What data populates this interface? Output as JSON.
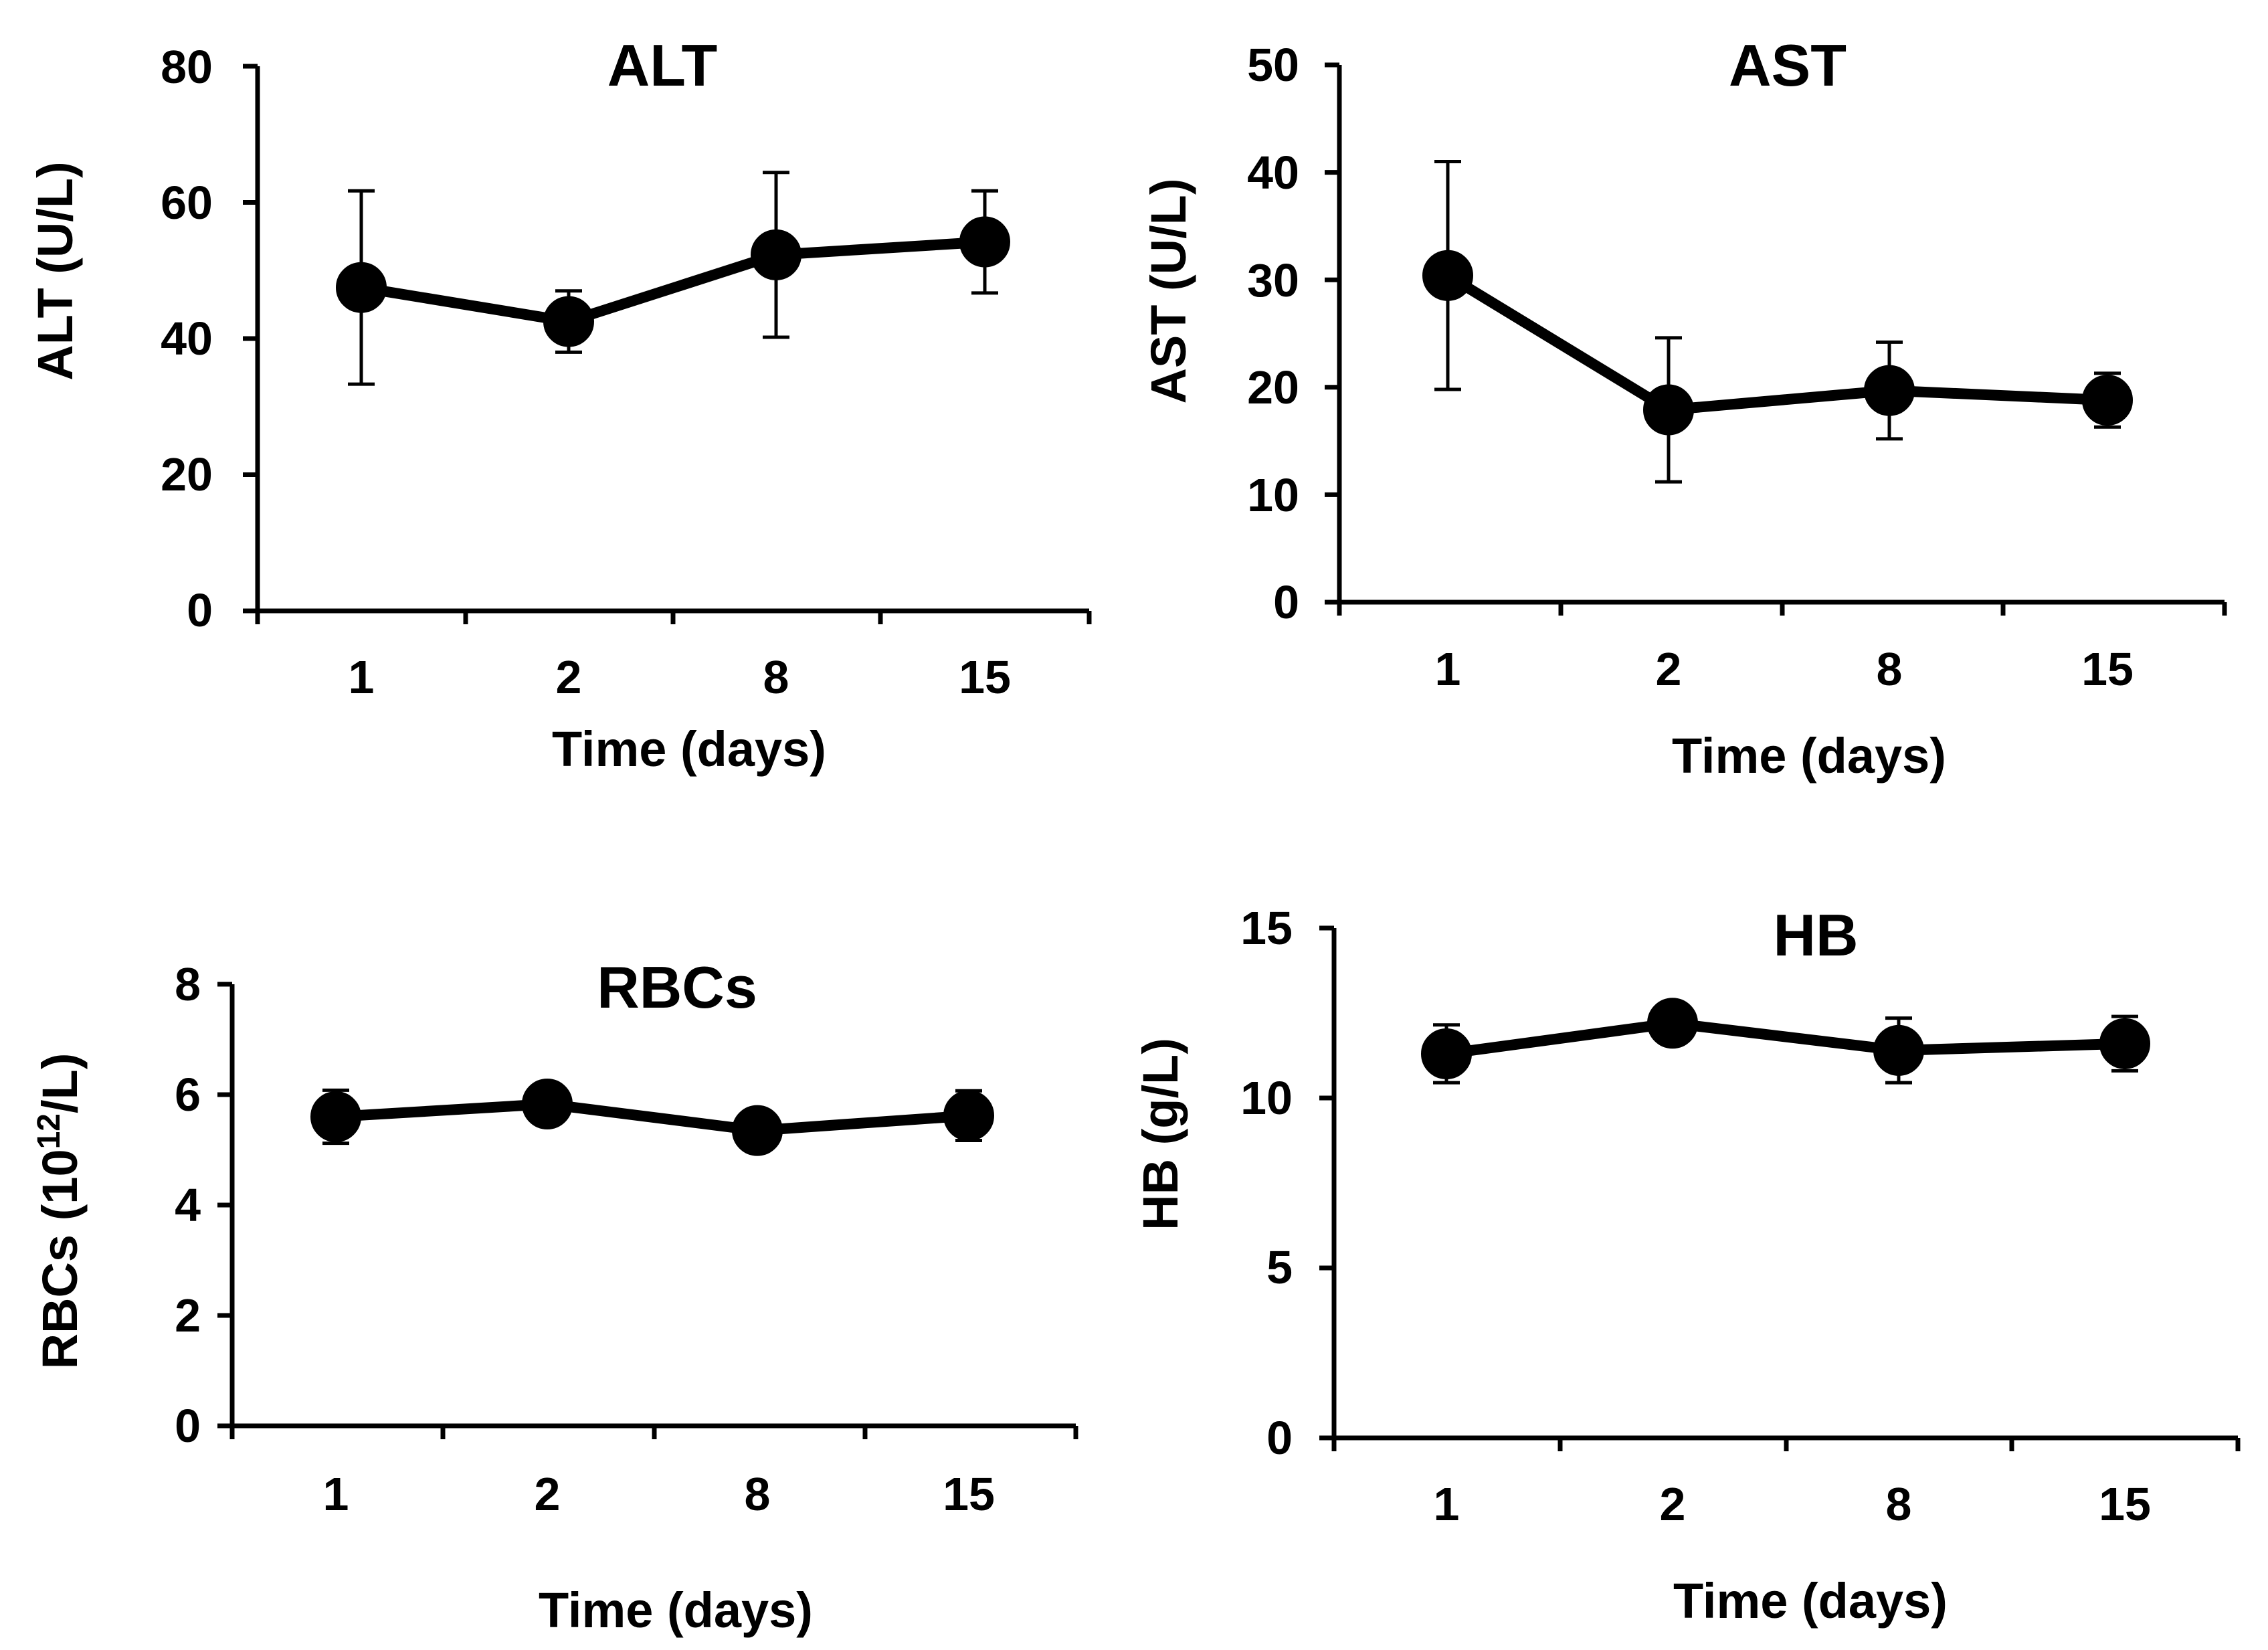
{
  "chart_data": [
    {
      "id": "alt",
      "type": "line",
      "title": "ALT",
      "xlabel": "Time (days)",
      "ylabel": "ALT (U/L)",
      "categories": [
        "1",
        "2",
        "8",
        "15"
      ],
      "yticks": [
        "0",
        "20",
        "40",
        "60",
        "80"
      ],
      "ylim": [
        0,
        80
      ],
      "series": [
        {
          "name": "ALT",
          "values": [
            47.5,
            42.5,
            52.3,
            54.2
          ],
          "errors": [
            14.2,
            4.5,
            12.1,
            7.5
          ]
        }
      ]
    },
    {
      "id": "ast",
      "type": "line",
      "title": "AST",
      "xlabel": "Time (days)",
      "ylabel": "AST (U/L)",
      "categories": [
        "1",
        "2",
        "8",
        "15"
      ],
      "yticks": [
        "0",
        "10",
        "20",
        "30",
        "40",
        "50"
      ],
      "ylim": [
        0,
        50
      ],
      "series": [
        {
          "name": "AST",
          "values": [
            30.4,
            17.9,
            19.7,
            18.8
          ],
          "errors": [
            10.6,
            6.7,
            4.5,
            2.5
          ]
        }
      ]
    },
    {
      "id": "rbc",
      "type": "line",
      "title": "RBCs",
      "xlabel": "Time (days)",
      "ylabel_main": "RBCs (10",
      "ylabel_sup": "12",
      "ylabel_tail": "/L)",
      "categories": [
        "1",
        "2",
        "8",
        "15"
      ],
      "yticks": [
        "0",
        "2",
        "4",
        "6",
        "8"
      ],
      "ylim": [
        0,
        8
      ],
      "series": [
        {
          "name": "RBCs",
          "values": [
            5.6,
            5.83,
            5.35,
            5.62
          ],
          "errors": [
            0.48,
            0.25,
            0.12,
            0.45
          ]
        }
      ]
    },
    {
      "id": "hb",
      "type": "line",
      "title": "HB",
      "xlabel": "Time (days)",
      "ylabel": "HB (g/L)",
      "categories": [
        "1",
        "2",
        "8",
        "15"
      ],
      "yticks": [
        "0",
        "5",
        "10",
        "15"
      ],
      "ylim": [
        0,
        15
      ],
      "series": [
        {
          "name": "HB",
          "values": [
            11.3,
            12.2,
            11.4,
            11.6
          ],
          "errors": [
            0.85,
            0.28,
            0.95,
            0.8
          ]
        }
      ]
    }
  ],
  "colors": {
    "line": "#000000",
    "marker": "#000000",
    "background": "#ffffff"
  }
}
